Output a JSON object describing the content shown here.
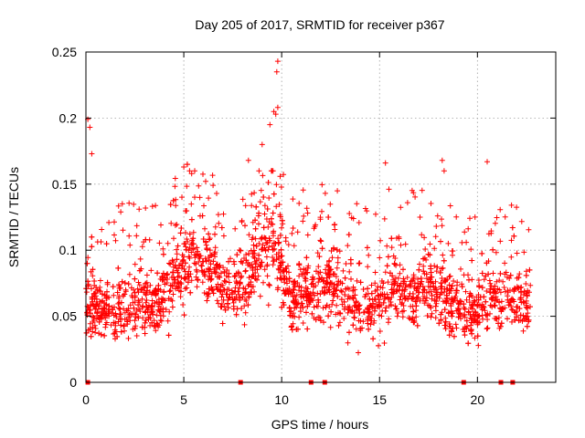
{
  "chart_data": {
    "type": "scatter",
    "title": "Day 205 of 2017, SRMTID for receiver p367",
    "xlabel": "GPS time / hours",
    "ylabel": "SRMTID / TECUs",
    "xlim": [
      0,
      24
    ],
    "ylim": [
      0,
      0.25
    ],
    "grid": true,
    "x_ticks": [
      0,
      5,
      10,
      15,
      20
    ],
    "x_tick_labels": [
      "0",
      "5",
      "10",
      "15",
      "20"
    ],
    "y_ticks": [
      0,
      0.05,
      0.1,
      0.15,
      0.2,
      0.25
    ],
    "y_tick_labels": [
      "0",
      "0.05",
      "0.1",
      "0.15",
      "0.2",
      "0.25"
    ],
    "series": [
      {
        "name": "SRMTID",
        "marker": "plus",
        "color": "#ff0000",
        "trend": [
          {
            "x": 0.1,
            "mean": 0.06,
            "spread": 0.02
          },
          {
            "x": 0.5,
            "mean": 0.056,
            "spread": 0.02
          },
          {
            "x": 1.5,
            "mean": 0.055,
            "spread": 0.02
          },
          {
            "x": 2.5,
            "mean": 0.058,
            "spread": 0.022
          },
          {
            "x": 3.5,
            "mean": 0.062,
            "spread": 0.022
          },
          {
            "x": 4.5,
            "mean": 0.075,
            "spread": 0.025
          },
          {
            "x": 5.5,
            "mean": 0.1,
            "spread": 0.028
          },
          {
            "x": 6.5,
            "mean": 0.085,
            "spread": 0.025
          },
          {
            "x": 7.5,
            "mean": 0.065,
            "spread": 0.02
          },
          {
            "x": 8.5,
            "mean": 0.09,
            "spread": 0.025
          },
          {
            "x": 9.5,
            "mean": 0.11,
            "spread": 0.028
          },
          {
            "x": 10.5,
            "mean": 0.06,
            "spread": 0.02
          },
          {
            "x": 11.5,
            "mean": 0.07,
            "spread": 0.022
          },
          {
            "x": 12.5,
            "mean": 0.075,
            "spread": 0.024
          },
          {
            "x": 13.5,
            "mean": 0.06,
            "spread": 0.022
          },
          {
            "x": 14.5,
            "mean": 0.055,
            "spread": 0.02
          },
          {
            "x": 15.5,
            "mean": 0.07,
            "spread": 0.025
          },
          {
            "x": 16.5,
            "mean": 0.065,
            "spread": 0.022
          },
          {
            "x": 17.5,
            "mean": 0.075,
            "spread": 0.022
          },
          {
            "x": 18.5,
            "mean": 0.06,
            "spread": 0.022
          },
          {
            "x": 19.5,
            "mean": 0.052,
            "spread": 0.02
          },
          {
            "x": 20.5,
            "mean": 0.06,
            "spread": 0.022
          },
          {
            "x": 21.5,
            "mean": 0.065,
            "spread": 0.022
          },
          {
            "x": 22.6,
            "mean": 0.058,
            "spread": 0.02
          }
        ],
        "x_range": [
          0,
          22.7
        ],
        "peaks": [
          {
            "x": 0.1,
            "y": 0.199
          },
          {
            "x": 0.2,
            "y": 0.193
          },
          {
            "x": 0.3,
            "y": 0.173
          },
          {
            "x": 5.0,
            "y": 0.163
          },
          {
            "x": 5.4,
            "y": 0.158
          },
          {
            "x": 8.3,
            "y": 0.168
          },
          {
            "x": 9.0,
            "y": 0.18
          },
          {
            "x": 9.4,
            "y": 0.195
          },
          {
            "x": 9.6,
            "y": 0.205
          },
          {
            "x": 9.7,
            "y": 0.203
          },
          {
            "x": 9.8,
            "y": 0.208
          },
          {
            "x": 9.8,
            "y": 0.243
          },
          {
            "x": 9.75,
            "y": 0.235
          },
          {
            "x": 15.3,
            "y": 0.166
          },
          {
            "x": 18.2,
            "y": 0.168
          },
          {
            "x": 18.3,
            "y": 0.16
          },
          {
            "x": 20.5,
            "y": 0.167
          }
        ],
        "zero_points": [
          0.1,
          7.9,
          11.5,
          12.2,
          19.3,
          21.2,
          21.8
        ]
      }
    ]
  }
}
